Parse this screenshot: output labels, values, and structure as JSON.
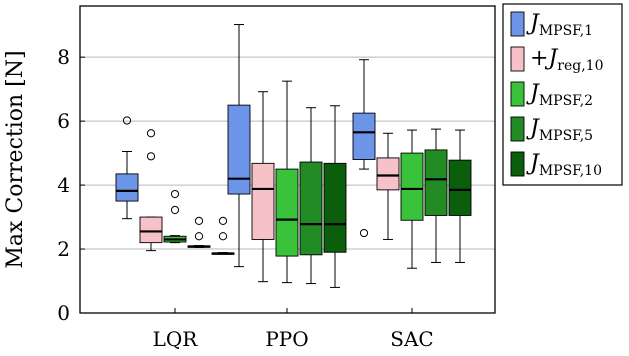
{
  "chart_data": {
    "type": "box",
    "ylabel": "Max Correction [N]",
    "xlabel": "",
    "ylim": [
      0,
      9.6
    ],
    "yticks": [
      "0",
      "2",
      "4",
      "6",
      "8"
    ],
    "grid": "horizontal",
    "legend_position": "right",
    "categories": [
      "LQR",
      "PPO",
      "SAC"
    ],
    "series": [
      {
        "name": "J_MPSF,1",
        "label_main": "J",
        "label_sub": "MPSF,1",
        "label_prefix": "",
        "color": "#6c95ea",
        "boxes": [
          {
            "whislo": 2.95,
            "q1": 3.5,
            "med": 3.82,
            "q3": 4.35,
            "whishi": 5.05,
            "fliers": [
              6.02
            ]
          },
          {
            "whislo": 1.45,
            "q1": 3.72,
            "med": 4.2,
            "q3": 6.5,
            "whishi": 9.02,
            "fliers": []
          },
          {
            "whislo": 4.5,
            "q1": 4.8,
            "med": 5.65,
            "q3": 6.25,
            "whishi": 7.92,
            "fliers": [
              2.5
            ]
          }
        ]
      },
      {
        "name": "+J_reg,10",
        "label_main": "J",
        "label_sub": "reg,10",
        "label_prefix": "+",
        "color": "#f7c1c8",
        "boxes": [
          {
            "whislo": 1.95,
            "q1": 2.2,
            "med": 2.55,
            "q3": 3.0,
            "whishi": 3.0,
            "fliers": [
              4.9,
              5.62
            ]
          },
          {
            "whislo": 0.98,
            "q1": 2.3,
            "med": 3.88,
            "q3": 4.68,
            "whishi": 6.92,
            "fliers": []
          },
          {
            "whislo": 2.3,
            "q1": 3.85,
            "med": 4.3,
            "q3": 4.85,
            "whishi": 5.62,
            "fliers": []
          }
        ]
      },
      {
        "name": "J_MPSF,2",
        "label_main": "J",
        "label_sub": "MPSF,2",
        "label_prefix": "",
        "color": "#3ac23a",
        "boxes": [
          {
            "whislo": 2.2,
            "q1": 2.22,
            "med": 2.3,
            "q3": 2.4,
            "whishi": 2.42,
            "fliers": [
              3.22,
              3.72
            ]
          },
          {
            "whislo": 0.95,
            "q1": 1.78,
            "med": 2.92,
            "q3": 4.5,
            "whishi": 7.25,
            "fliers": []
          },
          {
            "whislo": 1.4,
            "q1": 2.9,
            "med": 3.88,
            "q3": 5.0,
            "whishi": 5.72,
            "fliers": []
          }
        ]
      },
      {
        "name": "J_MPSF,5",
        "label_main": "J",
        "label_sub": "MPSF,5",
        "label_prefix": "",
        "color": "#238b23",
        "boxes": [
          {
            "whislo": 2.05,
            "q1": 2.06,
            "med": 2.08,
            "q3": 2.1,
            "whishi": 2.11,
            "fliers": [
              2.4,
              2.88
            ]
          },
          {
            "whislo": 0.92,
            "q1": 1.82,
            "med": 2.78,
            "q3": 4.72,
            "whishi": 6.42,
            "fliers": []
          },
          {
            "whislo": 1.58,
            "q1": 3.05,
            "med": 4.18,
            "q3": 5.1,
            "whishi": 5.75,
            "fliers": []
          }
        ]
      },
      {
        "name": "J_MPSF,10",
        "label_main": "J",
        "label_sub": "MPSF,10",
        "label_prefix": "",
        "color": "#0b5e0b",
        "boxes": [
          {
            "whislo": 1.84,
            "q1": 1.85,
            "med": 1.86,
            "q3": 1.88,
            "whishi": 1.89,
            "fliers": [
              2.4,
              2.88
            ]
          },
          {
            "whislo": 0.8,
            "q1": 1.9,
            "med": 2.78,
            "q3": 4.68,
            "whishi": 6.48,
            "fliers": []
          },
          {
            "whislo": 1.58,
            "q1": 3.05,
            "med": 3.85,
            "q3": 4.78,
            "whishi": 5.72,
            "fliers": []
          }
        ]
      }
    ]
  }
}
